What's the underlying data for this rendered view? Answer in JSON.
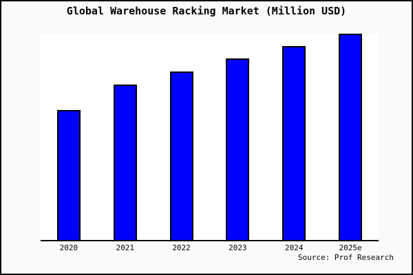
{
  "figure": {
    "title_label": "Global Warehouse Racking Market (Million USD)",
    "source_label": "Source: Prof Research"
  },
  "colors": {
    "figure_bg": "#FAFAFA",
    "plot_bg": "#FFFFFF",
    "frame": "#000000",
    "bar_fill": "#0000FF",
    "bar_border": "#000000",
    "text": "#000000"
  },
  "chart_data": {
    "type": "bar",
    "title": "Global Warehouse Racking Market (Million USD)",
    "categories": [
      "2020",
      "2021",
      "2022",
      "2023",
      "2024",
      "2025e"
    ],
    "values": [
      63,
      75.3,
      81.7,
      88,
      94,
      100
    ],
    "value_scale_note": "no y-axis shown; values estimated as percent of tallest bar (2025e = 100)",
    "xlabel": "",
    "ylabel": "",
    "ylim": [
      0,
      100
    ],
    "y_axis_visible": false,
    "gridlines": false,
    "legend_position": "none",
    "annotation": "Source: Prof Research",
    "bar_color": "#0000FF"
  }
}
